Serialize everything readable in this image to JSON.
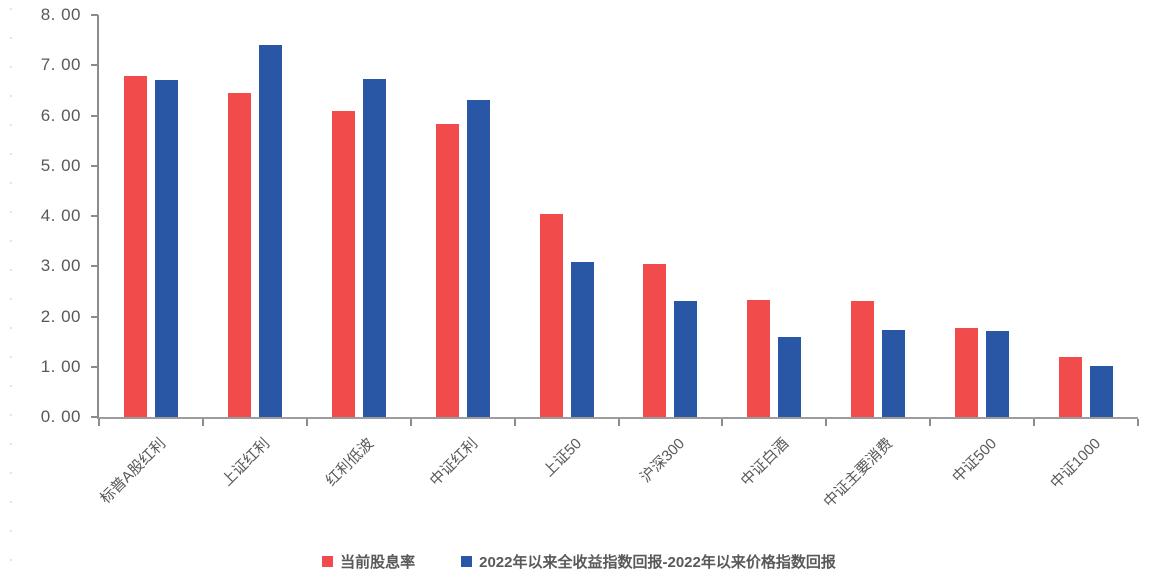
{
  "chart_data": {
    "type": "bar",
    "categories": [
      "标普A股红利",
      "上证红利",
      "红利低波",
      "中证红利",
      "上证50",
      "沪深300",
      "中证白酒",
      "中证主要消费",
      "中证500",
      "中证1000"
    ],
    "series": [
      {
        "name": "当前股息率",
        "color": "#F24B4C",
        "values": [
          6.78,
          6.45,
          6.09,
          5.84,
          4.05,
          3.05,
          2.33,
          2.3,
          1.78,
          1.19
        ]
      },
      {
        "name": "2022年以来全收益指数回报-2022年以来价格指数回报",
        "color": "#2A57A5",
        "values": [
          6.7,
          7.4,
          6.73,
          6.31,
          3.08,
          2.31,
          1.6,
          1.73,
          1.72,
          1.02
        ]
      }
    ],
    "title": "",
    "xlabel": "",
    "ylabel": "",
    "ylim": [
      0,
      8
    ],
    "ytick_step": 1,
    "ytick_labels": [
      "0. 00",
      "1. 00",
      "2. 00",
      "3. 00",
      "4. 00",
      "5. 00",
      "6. 00",
      "7. 00",
      "8. 00"
    ],
    "grid": "off",
    "legend_position": "bottom"
  },
  "colors": {
    "axis_line": "#8c8c8c",
    "baseline": "#9c9c9c",
    "tick_text": "#595959",
    "background": "#ffffff"
  }
}
